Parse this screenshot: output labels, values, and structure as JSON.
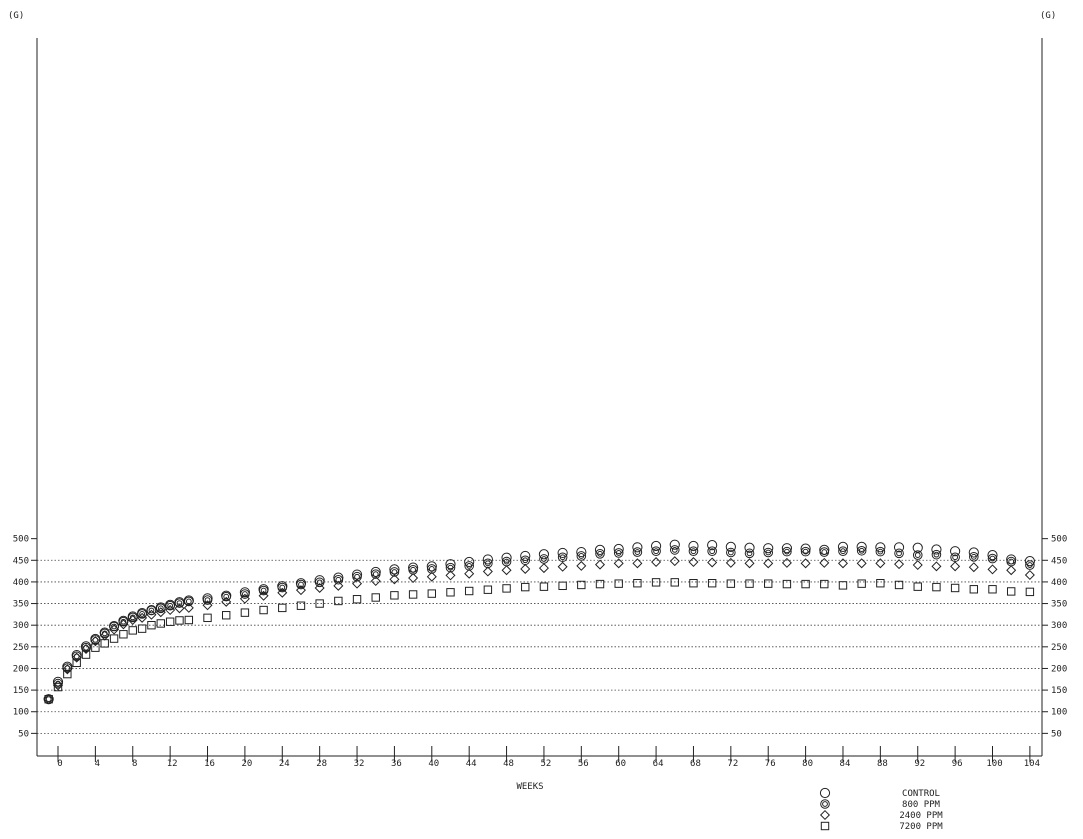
{
  "chart_data": {
    "type": "scatter",
    "title": "",
    "xlabel": "WEEKS",
    "ylabel": "(G)",
    "ylabel_right": "(G)",
    "xlim": [
      -2,
      106
    ],
    "ylim": [
      0,
      500
    ],
    "x_ticks": [
      0,
      4,
      8,
      12,
      16,
      20,
      24,
      28,
      32,
      36,
      40,
      44,
      48,
      52,
      56,
      60,
      64,
      68,
      72,
      76,
      80,
      84,
      88,
      92,
      96,
      100,
      104
    ],
    "y_ticks": [
      50,
      100,
      150,
      200,
      250,
      300,
      350,
      400,
      450,
      500
    ],
    "grid": "horizontal-dotted",
    "legend_position": "bottom-right",
    "x": [
      -1,
      0,
      1,
      2,
      3,
      4,
      5,
      6,
      7,
      8,
      9,
      10,
      11,
      12,
      13,
      14,
      16,
      18,
      20,
      22,
      24,
      26,
      28,
      30,
      32,
      34,
      36,
      38,
      40,
      42,
      44,
      46,
      48,
      50,
      52,
      54,
      56,
      58,
      60,
      62,
      64,
      66,
      68,
      70,
      72,
      74,
      76,
      78,
      80,
      82,
      84,
      86,
      88,
      90,
      92,
      94,
      96,
      98,
      100,
      102,
      104
    ],
    "series": [
      {
        "name": "CONTROL",
        "marker": "circle",
        "values": [
          129,
          169,
          204,
          231,
          251,
          268,
          283,
          298,
          310,
          320,
          328,
          335,
          341,
          347,
          353,
          357,
          362,
          368,
          376,
          383,
          390,
          397,
          404,
          410,
          417,
          423,
          429,
          433,
          436,
          441,
          446,
          452,
          456,
          460,
          464,
          467,
          469,
          474,
          476,
          480,
          483,
          486,
          483,
          485,
          481,
          479,
          478,
          478,
          477,
          474,
          481,
          481,
          480,
          480,
          479,
          475,
          471,
          468,
          462,
          452,
          448
        ]
      },
      {
        "name": "800 PPM",
        "marker": "double-circle",
        "values": [
          129,
          165,
          201,
          228,
          248,
          266,
          281,
          297,
          308,
          318,
          326,
          334,
          339,
          345,
          351,
          355,
          358,
          366,
          372,
          380,
          387,
          394,
          399,
          405,
          412,
          418,
          423,
          428,
          430,
          433,
          437,
          443,
          447,
          450,
          453,
          457,
          460,
          465,
          467,
          469,
          471,
          474,
          471,
          471,
          468,
          466,
          468,
          470,
          470,
          469,
          471,
          472,
          470,
          466,
          462,
          463,
          457,
          458,
          454,
          447,
          439
        ]
      },
      {
        "name": "2400 PPM",
        "marker": "diamond",
        "values": [
          129,
          161,
          198,
          225,
          245,
          263,
          276,
          290,
          302,
          312,
          317,
          324,
          330,
          335,
          339,
          340,
          346,
          354,
          361,
          368,
          375,
          381,
          386,
          391,
          396,
          402,
          406,
          409,
          412,
          415,
          419,
          424,
          427,
          430,
          432,
          435,
          437,
          440,
          443,
          443,
          446,
          448,
          446,
          445,
          444,
          443,
          443,
          444,
          443,
          444,
          443,
          443,
          443,
          441,
          439,
          436,
          436,
          434,
          429,
          427,
          416
        ]
      },
      {
        "name": "7200 PPM",
        "marker": "square",
        "values": [
          129,
          157,
          187,
          213,
          232,
          248,
          258,
          269,
          279,
          288,
          292,
          300,
          304,
          308,
          311,
          312,
          317,
          323,
          329,
          335,
          340,
          345,
          350,
          356,
          360,
          364,
          369,
          371,
          373,
          376,
          379,
          382,
          385,
          388,
          389,
          391,
          393,
          395,
          396,
          397,
          399,
          399,
          397,
          397,
          396,
          396,
          396,
          395,
          395,
          395,
          392,
          396,
          397,
          393,
          389,
          388,
          386,
          383,
          383,
          378,
          377
        ]
      }
    ]
  },
  "colors": {
    "ink": "#222222",
    "grid": "#444444"
  }
}
